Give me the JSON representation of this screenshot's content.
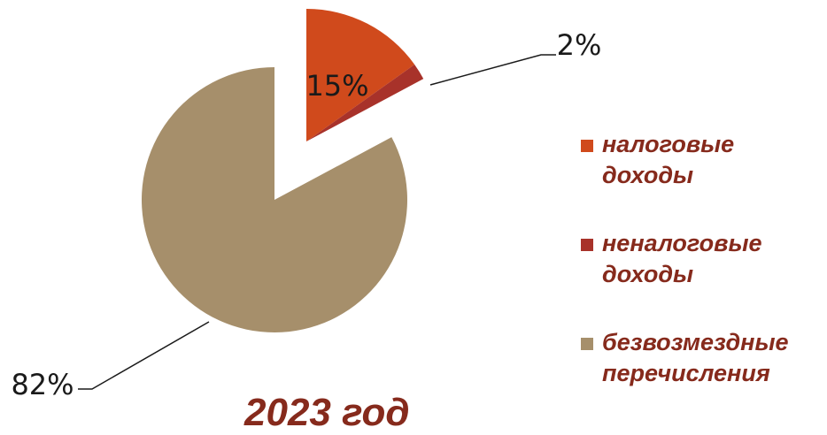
{
  "chart_data": {
    "type": "pie",
    "title": "2023 год",
    "slices": [
      {
        "label": "налоговые доходы",
        "legend_text": "налоговые\nдоходы",
        "value": 15,
        "value_label": "15%",
        "color": "#d04a1c"
      },
      {
        "label": "неналоговые доходы",
        "legend_text": "неналоговые\nдоходы",
        "value": 2,
        "value_label": "2%",
        "color": "#a8322a"
      },
      {
        "label": "безвозмездные перечисления",
        "legend_text": "безвозмездные\nперечисления",
        "value": 82,
        "value_label": "82%",
        "color": "#a68f6b"
      }
    ],
    "legend_position": "right",
    "exploded": true
  },
  "colors": {
    "title": "#862a1c",
    "legend_text": "#862a1c"
  }
}
